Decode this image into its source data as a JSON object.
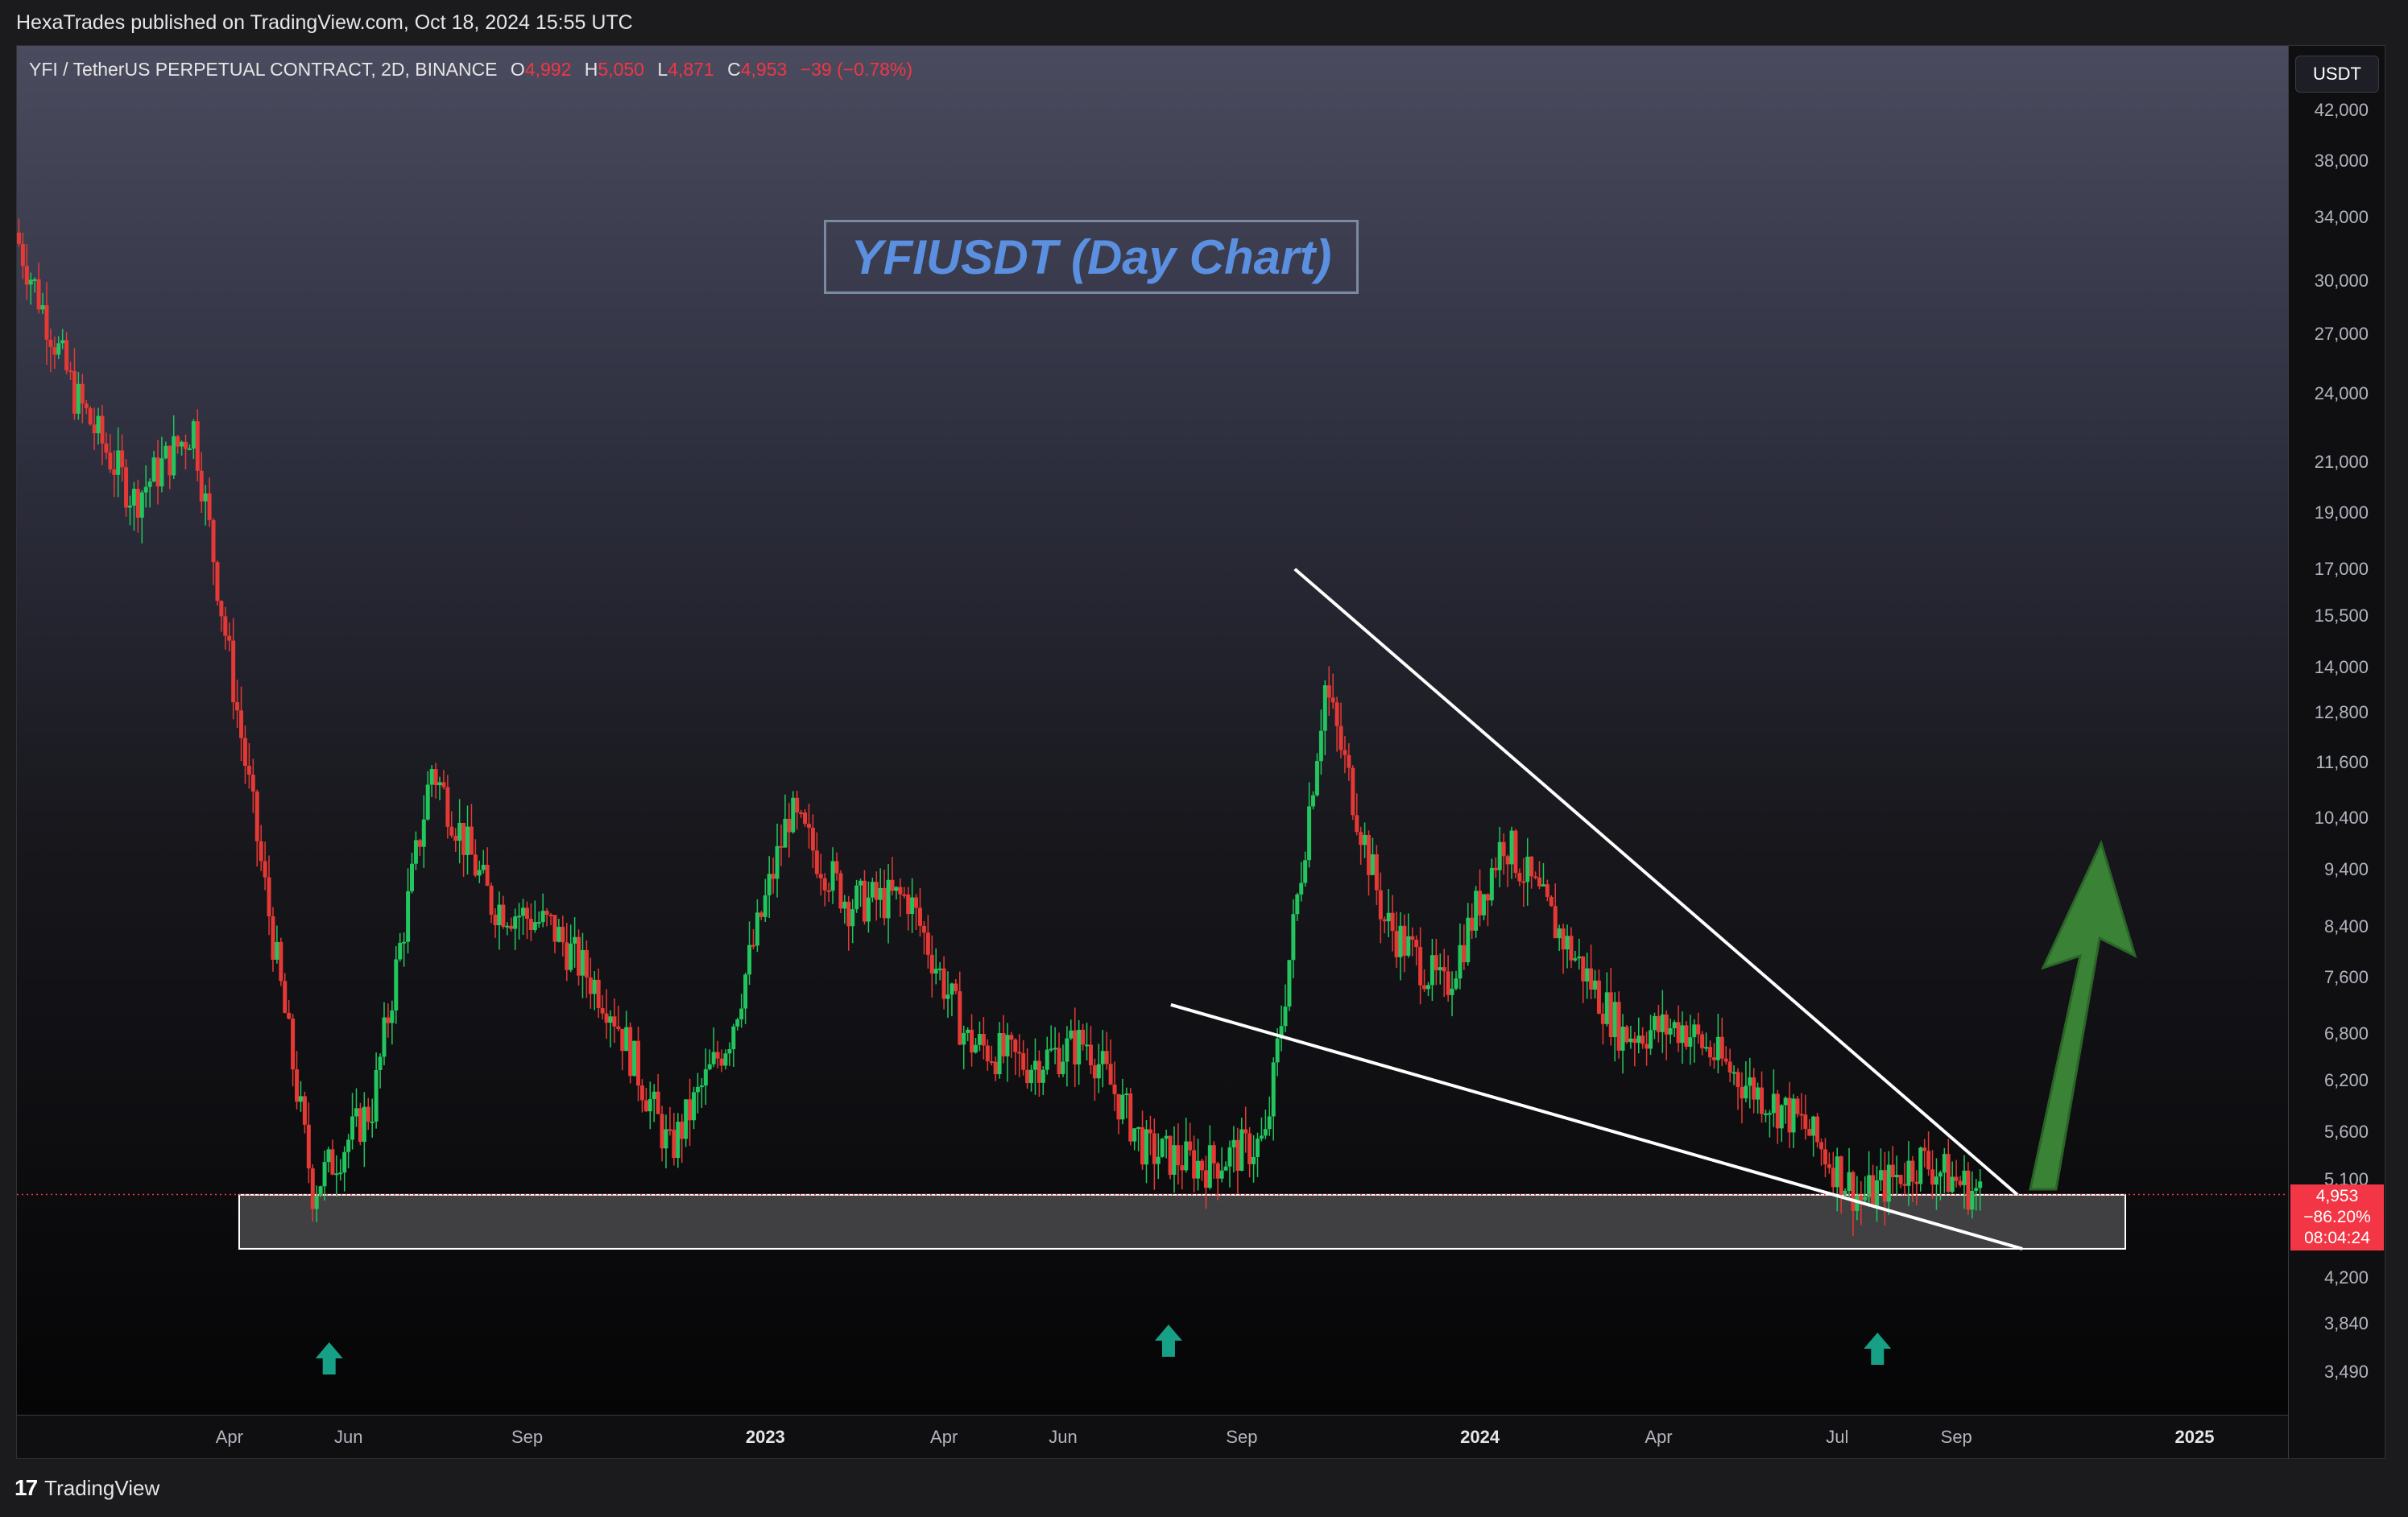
{
  "header": {
    "publisher_line": "HexaTrades published on TradingView.com, Oct 18, 2024 15:55 UTC"
  },
  "legend": {
    "symbol": "YFI / TetherUS PERPETUAL CONTRACT, 2D, BINANCE",
    "o_label": "O",
    "o_value": "4,992",
    "h_label": "H",
    "h_value": "5,050",
    "l_label": "L",
    "l_value": "4,871",
    "c_label": "C",
    "c_value": "4,953",
    "change": "−39 (−0.78%)"
  },
  "chart_title": "YFIUSDT (Day Chart)",
  "price_axis": {
    "currency_button": "USDT",
    "ticks": [
      "42,000",
      "38,000",
      "34,000",
      "30,000",
      "27,000",
      "24,000",
      "21,000",
      "19,000",
      "17,000",
      "15,500",
      "14,000",
      "12,800",
      "11,600",
      "10,400",
      "9,400",
      "8,400",
      "7,600",
      "6,800",
      "6,200",
      "5,600",
      "5,100",
      "4,200",
      "3,840",
      "3,490"
    ]
  },
  "last_price": {
    "price": "4,953",
    "change_pct": "−86.20%",
    "countdown": "08:04:24"
  },
  "time_axis": {
    "labels": [
      {
        "text": "Apr",
        "bold": false
      },
      {
        "text": "Jun",
        "bold": false
      },
      {
        "text": "Sep",
        "bold": false
      },
      {
        "text": "2023",
        "bold": true
      },
      {
        "text": "Apr",
        "bold": false
      },
      {
        "text": "Jun",
        "bold": false
      },
      {
        "text": "Sep",
        "bold": false
      },
      {
        "text": "2024",
        "bold": true
      },
      {
        "text": "Apr",
        "bold": false
      },
      {
        "text": "Jul",
        "bold": false
      },
      {
        "text": "Sep",
        "bold": false
      },
      {
        "text": "2025",
        "bold": true
      }
    ]
  },
  "footer": {
    "logo": "17",
    "brand": "TradingView"
  },
  "colors": {
    "up": "#22c55e",
    "down": "#e53935",
    "price_line": "#f23645",
    "trendline": "#ffffff",
    "arrow": "#3f8f3a",
    "support_arrow": "#16a085"
  },
  "chart_data": {
    "type": "candlestick",
    "symbol": "YFIUSDT",
    "interval": "2D",
    "scale": "log",
    "ylim": [
      3300,
      45000
    ],
    "approx_close_path": [
      {
        "date": "2022-01",
        "close": 33000
      },
      {
        "date": "2022-02",
        "close": 24000
      },
      {
        "date": "2022-03",
        "close": 19500
      },
      {
        "date": "2022-04",
        "close": 22500
      },
      {
        "date": "2022-05",
        "close": 10500
      },
      {
        "date": "2022-06",
        "close": 5000
      },
      {
        "date": "2022-07",
        "close": 5900
      },
      {
        "date": "2022-08",
        "close": 11500
      },
      {
        "date": "2022-09",
        "close": 8800
      },
      {
        "date": "2022-10",
        "close": 8400
      },
      {
        "date": "2022-11",
        "close": 7200
      },
      {
        "date": "2022-12",
        "close": 5400
      },
      {
        "date": "2023-01",
        "close": 6800
      },
      {
        "date": "2023-02",
        "close": 10500
      },
      {
        "date": "2023-03",
        "close": 8800
      },
      {
        "date": "2023-04",
        "close": 8900
      },
      {
        "date": "2023-05",
        "close": 6700
      },
      {
        "date": "2023-06",
        "close": 6400
      },
      {
        "date": "2023-07",
        "close": 6700
      },
      {
        "date": "2023-08",
        "close": 5400
      },
      {
        "date": "2023-09",
        "close": 5250
      },
      {
        "date": "2023-10",
        "close": 5500
      },
      {
        "date": "2023-11",
        "close": 13500
      },
      {
        "date": "2023-12",
        "close": 8500
      },
      {
        "date": "2024-01",
        "close": 7400
      },
      {
        "date": "2024-02",
        "close": 10000
      },
      {
        "date": "2024-03",
        "close": 8200
      },
      {
        "date": "2024-04",
        "close": 6800
      },
      {
        "date": "2024-05",
        "close": 6900
      },
      {
        "date": "2024-06",
        "close": 6200
      },
      {
        "date": "2024-07",
        "close": 5700
      },
      {
        "date": "2024-08",
        "close": 4900
      },
      {
        "date": "2024-09",
        "close": 5300
      },
      {
        "date": "2024-10",
        "close": 4953
      }
    ],
    "last": {
      "open": 4992,
      "high": 5050,
      "low": 4871,
      "close": 4953
    },
    "support_zone": [
      4450,
      4950
    ],
    "pattern": "falling wedge",
    "upper_trendline": [
      {
        "date": "2023-11",
        "price": 17000
      },
      {
        "date": "2024-11",
        "price": 4950
      }
    ],
    "lower_trendline": [
      {
        "date": "2023-10",
        "price": 7200
      },
      {
        "date": "2024-10",
        "price": 4450
      }
    ],
    "support_touches": [
      "2022-06",
      "2023-08",
      "2024-08"
    ]
  }
}
